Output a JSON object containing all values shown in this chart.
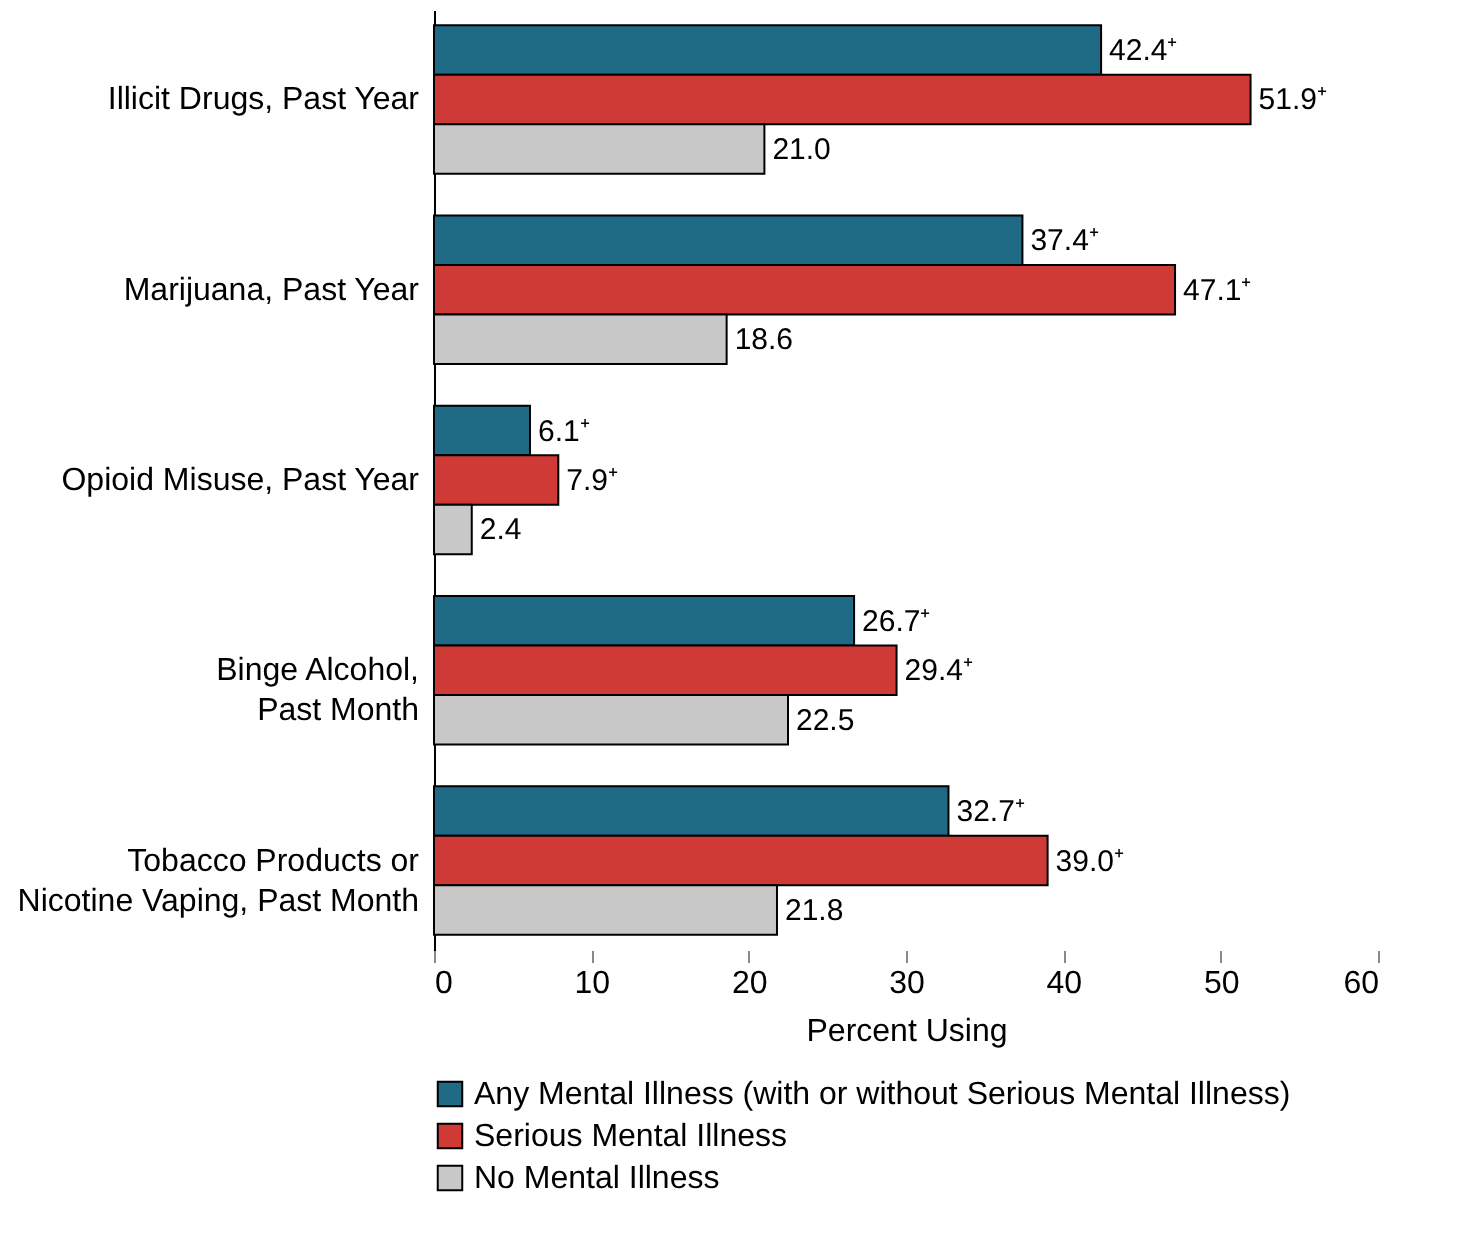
{
  "chart_data": {
    "type": "bar",
    "orientation": "horizontal",
    "xlabel": "Percent Using",
    "categories": [
      "Illicit Drugs, Past Year",
      "Marijuana, Past Year",
      "Opioid Misuse, Past Year",
      "Binge Alcohol,\nPast Month",
      "Tobacco Products or\nNicotine Vaping, Past Month"
    ],
    "series": [
      {
        "name": "Any Mental Illness (with or without Serious Mental Illness)",
        "color": "#1f6b86",
        "values": [
          42.4,
          37.4,
          6.1,
          26.7,
          32.7
        ],
        "value_labels": [
          "42.4⁺",
          "37.4⁺",
          "6.1⁺",
          "26.7⁺",
          "32.7⁺"
        ]
      },
      {
        "name": "Serious Mental Illness",
        "color": "#d03a36",
        "values": [
          51.9,
          47.1,
          7.9,
          29.4,
          39.0
        ],
        "value_labels": [
          "51.9⁺",
          "47.1⁺",
          "7.9⁺",
          "29.4⁺",
          "39.0⁺"
        ]
      },
      {
        "name": "No Mental Illness",
        "color": "#c8c8c8",
        "values": [
          21.0,
          18.6,
          2.4,
          22.5,
          21.8
        ],
        "value_labels": [
          "21.0",
          "18.6",
          "2.4",
          "22.5",
          "21.8"
        ]
      }
    ],
    "xlim": [
      0,
      60
    ],
    "xticks": [
      0,
      10,
      20,
      30,
      40,
      50,
      60
    ],
    "grid": false,
    "legend": "bottom"
  }
}
